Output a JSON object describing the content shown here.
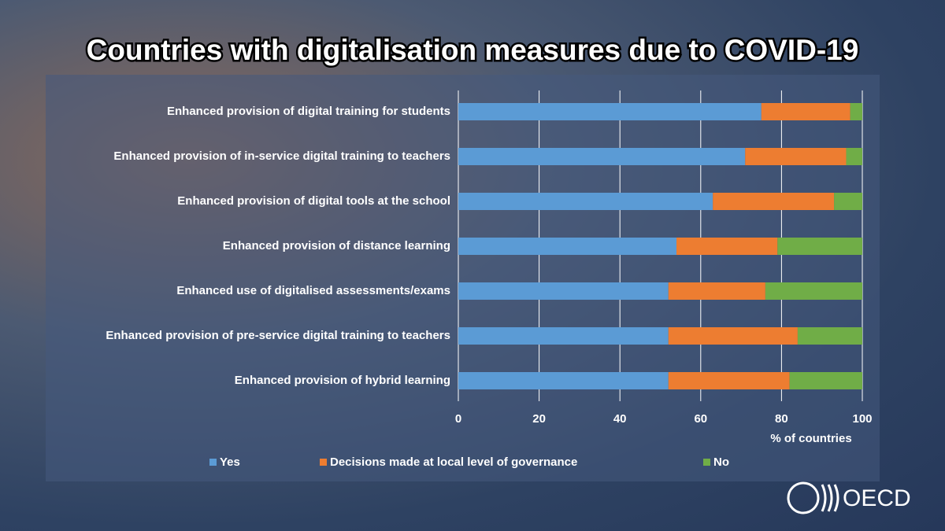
{
  "chart_data": {
    "type": "bar",
    "orientation": "horizontal",
    "stacked": true,
    "title": "Countries with digitalisation measures due to COVID-19",
    "categories": [
      "Enhanced provision of digital training for students",
      "Enhanced provision of in-service digital training to teachers",
      "Enhanced provision of digital tools at the school",
      "Enhanced provision of distance learning",
      "Enhanced use of digitalised assessments/exams",
      "Enhanced provision of pre-service digital training to teachers",
      "Enhanced provision of hybrid learning"
    ],
    "series": [
      {
        "name": "Yes",
        "color": "#5b9bd5",
        "values": [
          75,
          71,
          63,
          54,
          52,
          52,
          52
        ]
      },
      {
        "name": "Decisions made at local level of governance",
        "color": "#ed7d31",
        "values": [
          22,
          25,
          30,
          25,
          24,
          32,
          30
        ]
      },
      {
        "name": "No",
        "color": "#70ad47",
        "values": [
          3,
          4,
          7,
          21,
          24,
          16,
          18
        ]
      }
    ],
    "xlabel": "% of countries",
    "xlim": [
      0,
      100
    ],
    "xticks": [
      0,
      20,
      40,
      60,
      80,
      100
    ],
    "grid": true,
    "legend": "bottom"
  },
  "logo": "OECD"
}
